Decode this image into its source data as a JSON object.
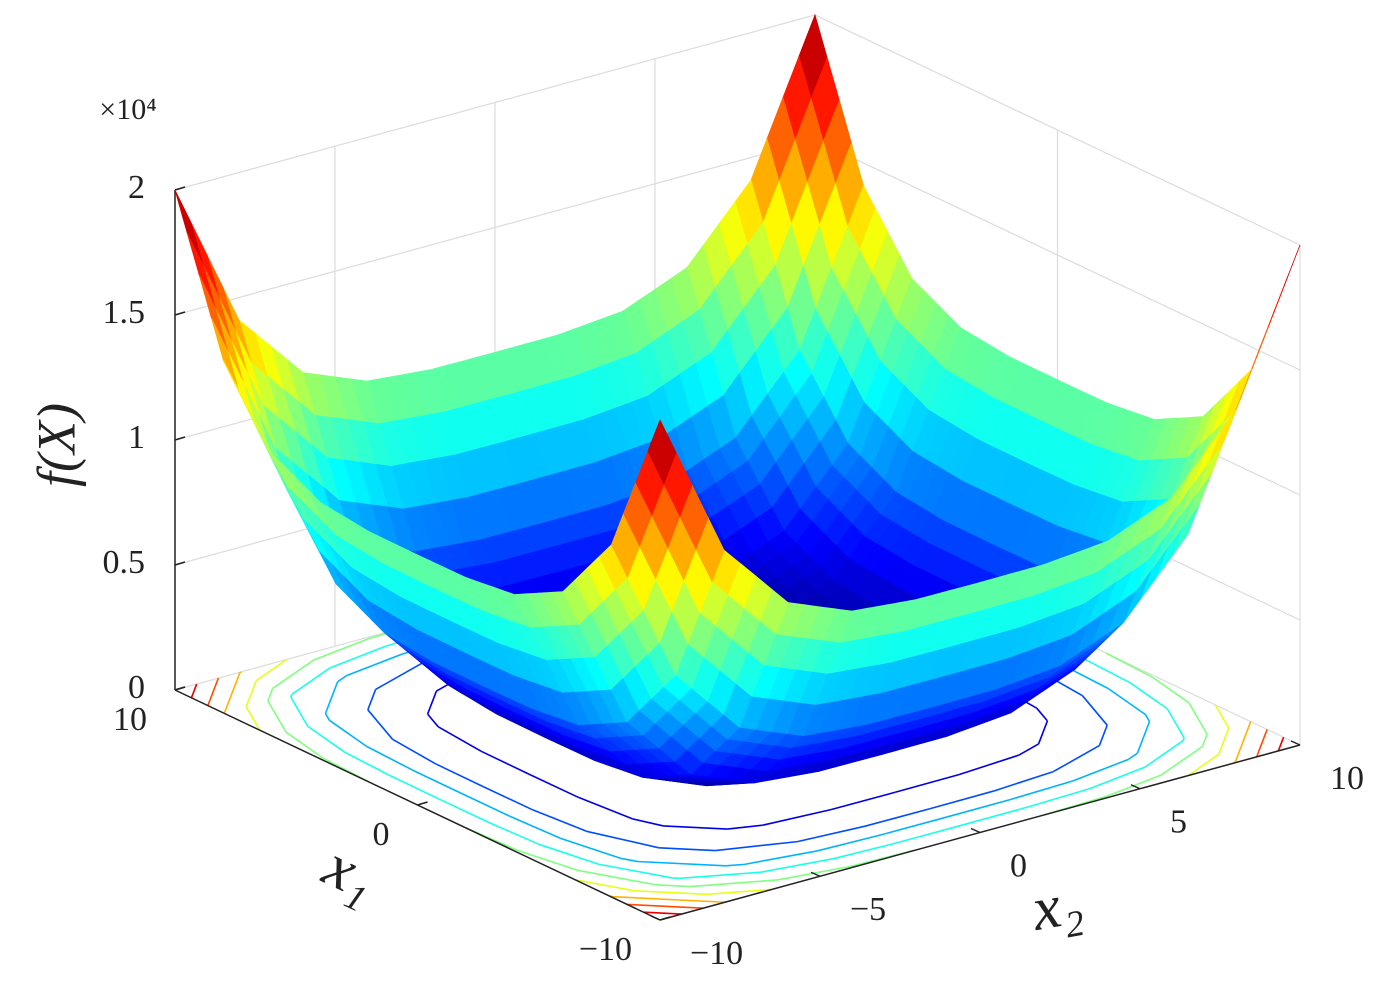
{
  "chart_data": {
    "type": "surface-contour",
    "zlabel": "f(X)",
    "x1label": "x₁",
    "x2label": "x₂",
    "z_multiplier_label": "×10⁴",
    "colormap": "jet",
    "grid": true,
    "x1": [
      -10,
      -8,
      -6,
      -4,
      -2,
      0,
      2,
      4,
      6,
      8,
      10
    ],
    "x2": [
      -10,
      -8,
      -6,
      -4,
      -2,
      0,
      2,
      4,
      6,
      8,
      10
    ],
    "z": [
      [
        20000,
        14096,
        11296,
        10256,
        10016,
        10000,
        10016,
        10256,
        11296,
        14096,
        20000
      ],
      [
        14096,
        8192,
        5392,
        4352,
        4112,
        4096,
        4112,
        4352,
        5392,
        8192,
        14096
      ],
      [
        11296,
        5392,
        2592,
        1552,
        1312,
        1296,
        1312,
        1552,
        2592,
        5392,
        11296
      ],
      [
        10256,
        4352,
        1552,
        512,
        272,
        256,
        272,
        512,
        1552,
        4352,
        10256
      ],
      [
        10016,
        4112,
        1312,
        272,
        32,
        16,
        32,
        272,
        1312,
        4112,
        10016
      ],
      [
        10000,
        4096,
        1296,
        256,
        16,
        0,
        16,
        256,
        1296,
        4096,
        10000
      ],
      [
        10016,
        4112,
        1312,
        272,
        32,
        16,
        32,
        272,
        1312,
        4112,
        10016
      ],
      [
        10256,
        4352,
        1552,
        512,
        272,
        256,
        272,
        512,
        1552,
        4352,
        10256
      ],
      [
        11296,
        5392,
        2592,
        1552,
        1312,
        1296,
        1312,
        1552,
        2592,
        5392,
        11296
      ],
      [
        14096,
        8192,
        5392,
        4352,
        4112,
        4096,
        4112,
        4352,
        5392,
        8192,
        14096
      ],
      [
        20000,
        14096,
        11296,
        10256,
        10016,
        10000,
        10016,
        10256,
        11296,
        14096,
        20000
      ]
    ],
    "contour_levels": [
      2000,
      4000,
      6000,
      8000,
      10000,
      12000,
      14000,
      16000,
      18000
    ],
    "x1lim": [
      -10,
      10
    ],
    "x2lim": [
      -10,
      10
    ],
    "zlim": [
      0,
      20000
    ],
    "x1ticks": [
      {
        "value": -10,
        "label": "−10"
      },
      0,
      10
    ],
    "x2ticks": [
      {
        "value": -10,
        "label": "−10"
      },
      {
        "value": -5,
        "label": "−5"
      },
      0,
      5,
      10
    ],
    "zticks": [
      0,
      {
        "value": 5000,
        "label": "0.5"
      },
      {
        "value": 10000,
        "label": "1"
      },
      {
        "value": 15000,
        "label": "1.5"
      },
      {
        "value": 20000,
        "label": "2"
      }
    ]
  }
}
